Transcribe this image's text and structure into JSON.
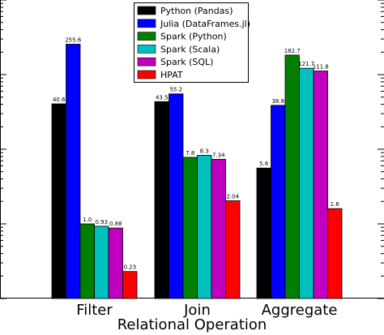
{
  "chart_data": {
    "type": "bar",
    "yscale": "log",
    "ylim": [
      0.1,
      1000
    ],
    "xlabel": "Relational Operation",
    "ylabel": "",
    "categories": [
      "Filter",
      "Join",
      "Aggregate"
    ],
    "legend_position": "top-center",
    "grid": false,
    "series": [
      {
        "name": "Python (Pandas)",
        "color": "#000000",
        "values": [
          40.6,
          43.5,
          5.6
        ],
        "labels": [
          "40.6",
          "43.5",
          "5.6"
        ]
      },
      {
        "name": "Julia (DataFrames.jl)",
        "color": "#0000ff",
        "values": [
          255.6,
          55.2,
          38.8
        ],
        "labels": [
          "255.6",
          "55.2",
          "38.8"
        ]
      },
      {
        "name": "Spark (Python)",
        "color": "#007f00",
        "values": [
          1.0,
          7.8,
          182.7
        ],
        "labels": [
          "1.0",
          "7.8",
          "182.7"
        ]
      },
      {
        "name": "Spark (Scala)",
        "color": "#00bfbf",
        "values": [
          0.93,
          8.3,
          121.7
        ],
        "labels": [
          "0.93",
          "8.3",
          "121.7"
        ]
      },
      {
        "name": "Spark (SQL)",
        "color": "#bf00bf",
        "values": [
          0.88,
          7.34,
          111.8
        ],
        "labels": [
          "0.88",
          "7.34",
          "111.8"
        ]
      },
      {
        "name": "HPAT",
        "color": "#ff0000",
        "values": [
          0.23,
          2.04,
          1.6
        ],
        "labels": [
          "0.23",
          "2.04",
          "1.6"
        ]
      }
    ]
  }
}
